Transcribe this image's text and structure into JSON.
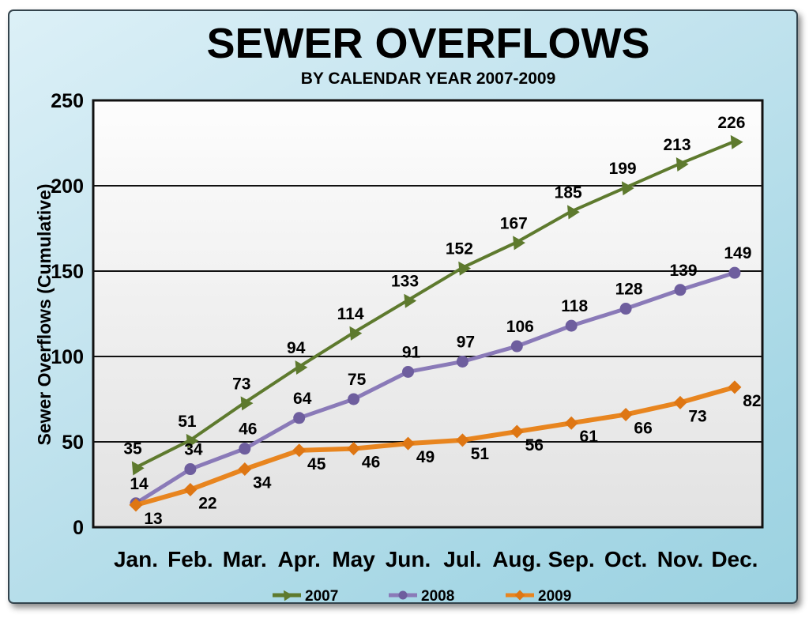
{
  "title": "SEWER OVERFLOWS",
  "subtitle": "BY CALENDAR YEAR 2007-2009",
  "y_axis_title": "Sewer Overflows (Cumulative)",
  "colors": {
    "card_border": "#33434c",
    "grid": "#111111",
    "text": "#000000",
    "plot_bg_top": "#fdfdfd",
    "plot_bg_bottom": "#e2e2e2",
    "series_2007": "#5e7a2e",
    "series_2008": "#8a7ab8",
    "series_2009": "#e8851f"
  },
  "chart_data": {
    "type": "line",
    "title": "SEWER OVERFLOWS",
    "subtitle": "BY CALENDAR YEAR 2007-2009",
    "xlabel": "",
    "ylabel": "Sewer Overflows (Cumulative)",
    "categories": [
      "Jan.",
      "Feb.",
      "Mar.",
      "Apr.",
      "May",
      "Jun.",
      "Jul.",
      "Aug.",
      "Sep.",
      "Oct.",
      "Nov.",
      "Dec."
    ],
    "series": [
      {
        "name": "2007",
        "color": "#5e7a2e",
        "marker": "triangle",
        "marker_color": "#5e7a2e",
        "line_width": 4,
        "values": [
          35,
          51,
          73,
          94,
          114,
          133,
          152,
          167,
          185,
          199,
          213,
          226
        ],
        "label_offset": {
          "dx": -4,
          "dy": -17
        }
      },
      {
        "name": "2008",
        "color": "#8a7ab8",
        "marker": "circle",
        "marker_color": "#6e5e9e",
        "line_width": 5,
        "values": [
          14,
          34,
          46,
          64,
          75,
          91,
          97,
          106,
          118,
          128,
          139,
          149
        ],
        "label_offset": {
          "dx": 4,
          "dy": -18
        }
      },
      {
        "name": "2009",
        "color": "#e8851f",
        "marker": "diamond",
        "marker_color": "#de7613",
        "line_width": 6,
        "values": [
          13,
          22,
          34,
          45,
          46,
          49,
          51,
          56,
          61,
          66,
          73,
          82
        ],
        "label_offset": {
          "dx": 22,
          "dy": 24
        }
      }
    ],
    "ylim": [
      0,
      250
    ],
    "yticks": [
      0,
      50,
      100,
      150,
      200,
      250
    ],
    "grid": "horizontal",
    "legend_position": "bottom",
    "legend_labels": [
      "2007",
      "2008",
      "2009"
    ]
  }
}
